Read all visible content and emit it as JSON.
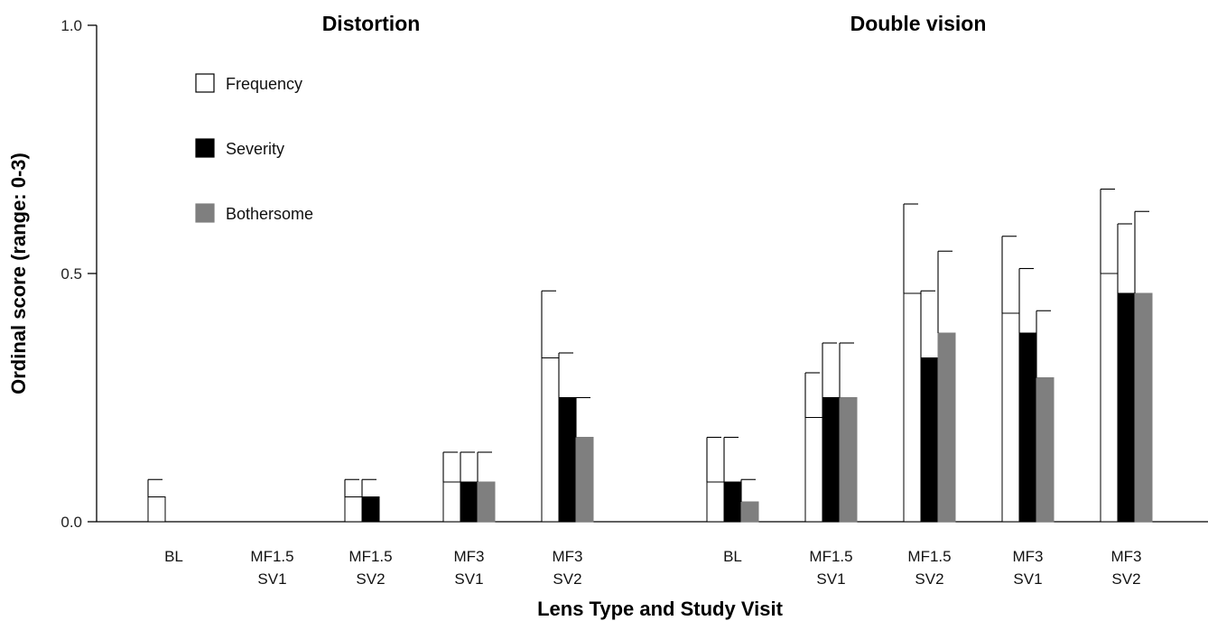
{
  "chart_data": {
    "type": "bar",
    "ylabel": "Ordinal score (range: 0-3)",
    "xlabel": "Lens Type and Study Visit",
    "ylim": [
      0,
      1.0
    ],
    "yticks": [
      "0.0",
      "0.5",
      "1.0"
    ],
    "legend_position": "top-left",
    "colors": {
      "Frequency": "#ffffff",
      "Severity": "#000000",
      "Bothersome": "#7f7f7f"
    },
    "groups": [
      {
        "title": "Distortion",
        "categories": [
          [
            "BL"
          ],
          [
            "MF1.5",
            "SV1"
          ],
          [
            "MF1.5",
            "SV2"
          ],
          [
            "MF3",
            "SV1"
          ],
          [
            "MF3",
            "SV2"
          ]
        ],
        "series": [
          {
            "name": "Frequency",
            "values": [
              0.05,
              0,
              0.05,
              0.08,
              0.33
            ],
            "errors": [
              0.035,
              0,
              0.035,
              0.06,
              0.135
            ]
          },
          {
            "name": "Severity",
            "values": [
              0,
              0,
              0.05,
              0.08,
              0.25
            ],
            "errors": [
              0,
              0,
              0.035,
              0.06,
              0.09
            ]
          },
          {
            "name": "Bothersome",
            "values": [
              0,
              0,
              0,
              0.08,
              0.17
            ],
            "errors": [
              0,
              0,
              0,
              0.06,
              0.08
            ]
          }
        ]
      },
      {
        "title": "Double vision",
        "categories": [
          [
            "BL"
          ],
          [
            "MF1.5",
            "SV1"
          ],
          [
            "MF1.5",
            "SV2"
          ],
          [
            "MF3",
            "SV1"
          ],
          [
            "MF3",
            "SV2"
          ]
        ],
        "series": [
          {
            "name": "Frequency",
            "values": [
              0.08,
              0.21,
              0.46,
              0.42,
              0.5
            ],
            "errors": [
              0.09,
              0.09,
              0.18,
              0.155,
              0.17
            ]
          },
          {
            "name": "Severity",
            "values": [
              0.08,
              0.25,
              0.33,
              0.38,
              0.46
            ],
            "errors": [
              0.09,
              0.11,
              0.135,
              0.13,
              0.14
            ]
          },
          {
            "name": "Bothersome",
            "values": [
              0.04,
              0.25,
              0.38,
              0.29,
              0.46
            ],
            "errors": [
              0.045,
              0.11,
              0.165,
              0.135,
              0.165
            ]
          }
        ]
      }
    ]
  }
}
